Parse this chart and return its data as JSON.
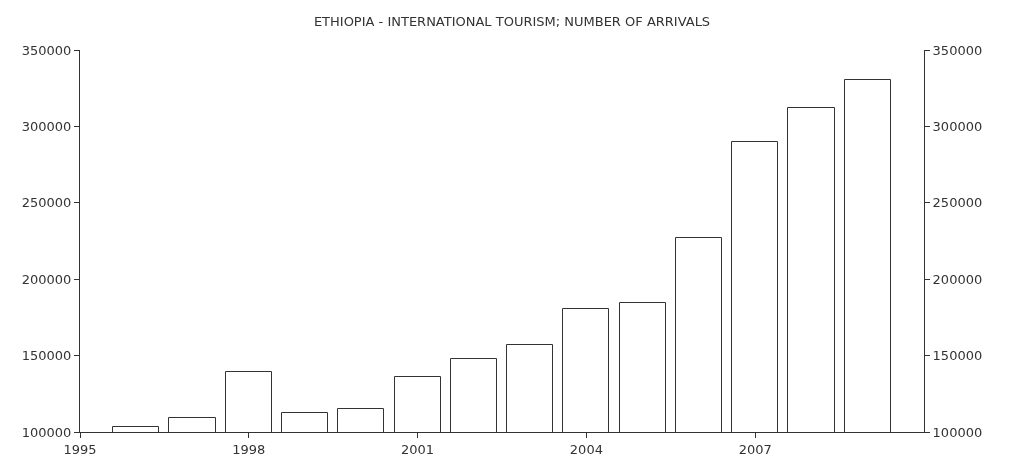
{
  "chart_data": {
    "type": "bar",
    "title": "ETHIOPIA - INTERNATIONAL TOURISM; NUMBER OF ARRIVALS",
    "x": [
      1996,
      1997,
      1998,
      1999,
      2000,
      2001,
      2002,
      2003,
      2004,
      2005,
      2006,
      2007,
      2008,
      2009
    ],
    "values": [
      103600,
      108900,
      139000,
      112500,
      115000,
      136300,
      148100,
      157000,
      180500,
      184600,
      227000,
      290000,
      312000,
      330500
    ],
    "color": "#ffffff",
    "xlim": [
      1995,
      2010
    ],
    "xticks": [
      1995,
      1998,
      2001,
      2004,
      2007
    ],
    "ylim": [
      100000,
      350000
    ],
    "yticks": [
      100000,
      150000,
      200000,
      250000,
      300000,
      350000
    ],
    "y2lim": [
      100000,
      350000
    ],
    "y2ticks": [
      100000,
      150000,
      200000,
      250000,
      300000,
      350000
    ],
    "grid": false
  }
}
